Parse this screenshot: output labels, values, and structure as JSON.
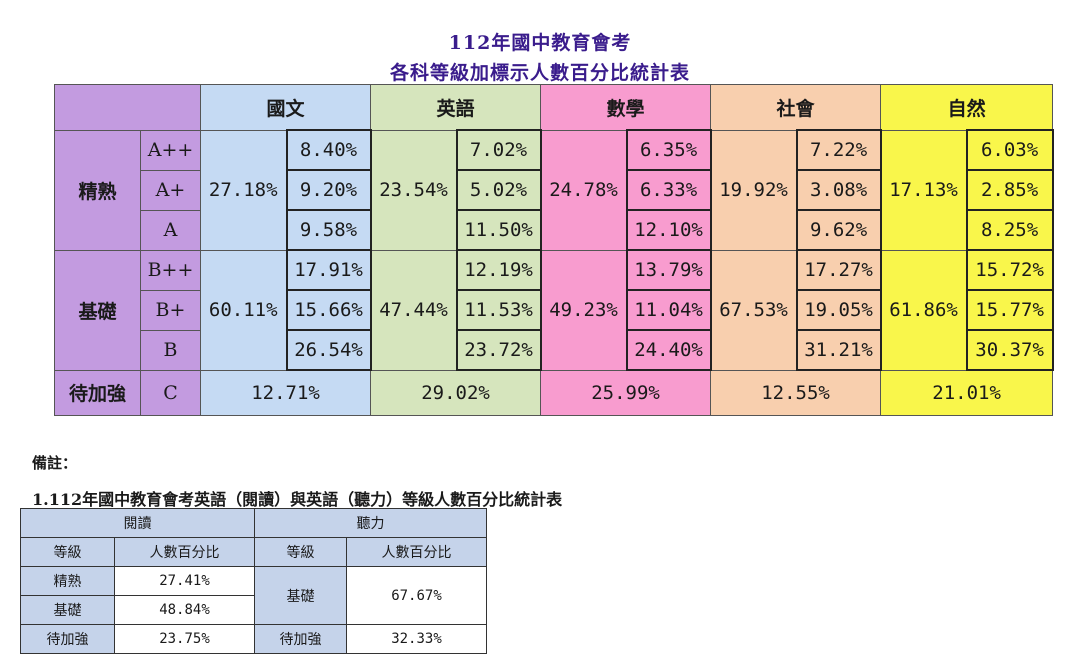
{
  "title_line1": "112年國中教育會考",
  "title_line2": "各科等級加標示人數百分比統計表",
  "subjects": [
    "國文",
    "英語",
    "數學",
    "社會",
    "自然"
  ],
  "groups": [
    {
      "label": "精熟",
      "grades": [
        "A++",
        "A+",
        "A"
      ]
    },
    {
      "label": "基礎",
      "grades": [
        "B++",
        "B+",
        "B"
      ]
    },
    {
      "label": "待加強",
      "grades": [
        "C"
      ]
    }
  ],
  "data": {
    "proficient_totals": [
      "27.18%",
      "23.54%",
      "24.78%",
      "19.92%",
      "17.13%"
    ],
    "proficient_rows": [
      [
        "8.40%",
        "7.02%",
        "6.35%",
        "7.22%",
        "6.03%"
      ],
      [
        "9.20%",
        "5.02%",
        "6.33%",
        "3.08%",
        "2.85%"
      ],
      [
        "9.58%",
        "11.50%",
        "12.10%",
        "9.62%",
        "8.25%"
      ]
    ],
    "basic_totals": [
      "60.11%",
      "47.44%",
      "49.23%",
      "67.53%",
      "61.86%"
    ],
    "basic_rows": [
      [
        "17.91%",
        "12.19%",
        "13.79%",
        "17.27%",
        "15.72%"
      ],
      [
        "15.66%",
        "11.53%",
        "11.04%",
        "19.05%",
        "15.77%"
      ],
      [
        "26.54%",
        "23.72%",
        "24.40%",
        "31.21%",
        "30.37%"
      ]
    ],
    "needs_improvement": [
      "12.71%",
      "29.02%",
      "25.99%",
      "12.55%",
      "21.01%"
    ]
  },
  "note_label": "備註：",
  "english_table": {
    "title": "1.112年國中教育會考英語（閱讀）與英語（聽力）等級人數百分比統計表",
    "reading_header": "閱讀",
    "listening_header": "聽力",
    "col_grade": "等級",
    "col_percent": "人數百分比",
    "reading": [
      {
        "grade": "精熟",
        "percent": "27.41%"
      },
      {
        "grade": "基礎",
        "percent": "48.84%"
      },
      {
        "grade": "待加強",
        "percent": "23.75%"
      }
    ],
    "listening": [
      {
        "grade": "基礎",
        "percent": "67.67%"
      },
      {
        "grade": "待加強",
        "percent": "32.33%"
      }
    ]
  },
  "colors": {
    "label_purple": "#c39be0",
    "chinese_blue": "#c5daf3",
    "english_green": "#d6e5bd",
    "math_pink": "#f89ccf",
    "social_orange": "#f8cfae",
    "science_yellow": "#f9f64b",
    "title_color": "#3a1c8c"
  }
}
